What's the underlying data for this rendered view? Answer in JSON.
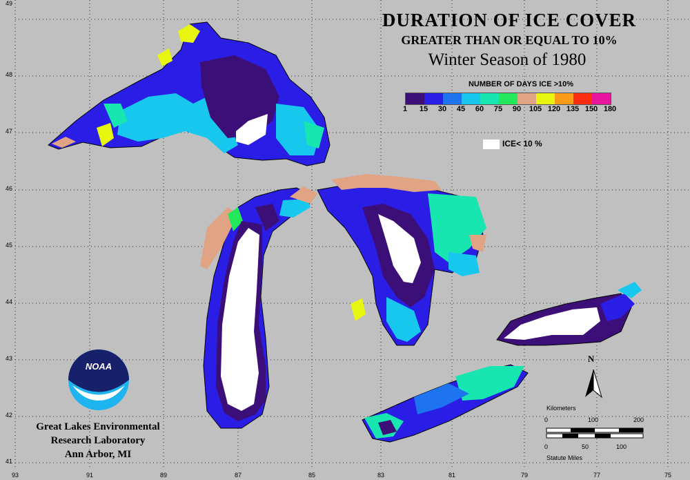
{
  "titles": {
    "main": "DURATION OF ICE COVER",
    "sub": "GREATER THAN OR EQUAL TO 10%",
    "season": "Winter Season of 1980"
  },
  "legend": {
    "title": "NUMBER OF DAYS ICE >10%",
    "colors": [
      "#3c0f78",
      "#2a1ee6",
      "#1d73f0",
      "#18c7ee",
      "#17e6b0",
      "#22e85a",
      "#e0a485",
      "#e8f50f",
      "#fa9b1a",
      "#fa2d10",
      "#e8169e"
    ],
    "ticks": [
      "1",
      "15",
      "30",
      "45",
      "60",
      "75",
      "90",
      "105",
      "120",
      "135",
      "150",
      "180"
    ],
    "ice_label": "ICE< 10 %"
  },
  "latitudes": [
    "49",
    "48",
    "47",
    "46",
    "45",
    "44",
    "43",
    "42",
    "41"
  ],
  "longitudes": [
    "93",
    "91",
    "89",
    "87",
    "85",
    "83",
    "81",
    "79",
    "77",
    "75"
  ],
  "logo": {
    "text": "NOAA",
    "name": "noaa-logo"
  },
  "lab": {
    "line1": "Great Lakes Environmental",
    "line2": "Research Laboratory",
    "line3": "Ann Arbor, MI"
  },
  "scale": {
    "km_title": "Kilometers",
    "km_ticks": [
      "0",
      "100",
      "200"
    ],
    "mi_ticks": [
      "0",
      "50",
      "100"
    ],
    "mi_title": "Statute Miles"
  },
  "north_label": "N",
  "land_color": "#c0c0c0",
  "grid_color": "#000000"
}
